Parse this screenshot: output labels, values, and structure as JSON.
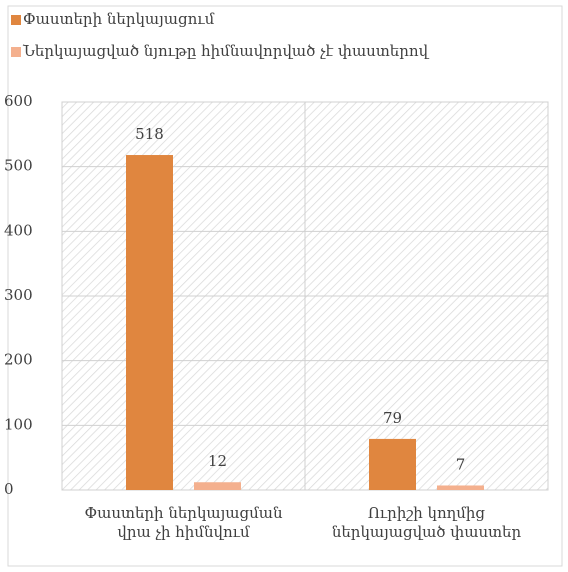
{
  "chart_data": {
    "type": "bar",
    "categories": [
      "Փաստերի ներկայացման\nվրա չի հիմնվում",
      "Ուրիշի կողմից\nներկայացված փաստեր"
    ],
    "series": [
      {
        "name": "Փաստերի ներկայացում",
        "color": "#e0863f",
        "values": [
          518,
          79
        ]
      },
      {
        "name": "Ներկայացված նյութը հիմնավորված չէ փաստերով",
        "color": "#f4b08e",
        "values": [
          12,
          7
        ]
      }
    ],
    "ylim": [
      0,
      600
    ],
    "yticks": [
      0,
      100,
      200,
      300,
      400,
      500,
      600
    ],
    "grid": true,
    "legend": "top-left"
  }
}
